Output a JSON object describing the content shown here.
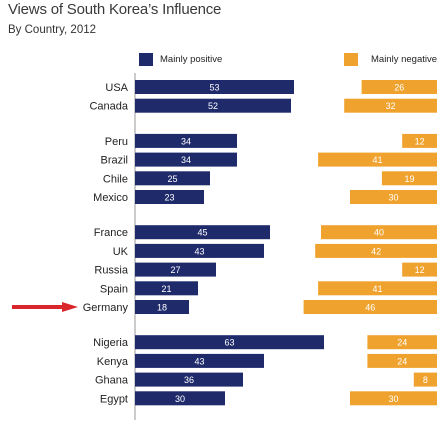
{
  "title": "Views of South Korea’s Influence",
  "subtitle": "By Country, 2012",
  "colors": {
    "positive": "#1f2a6b",
    "negative": "#f0a22e",
    "arrow": "#d9262c",
    "axis": "#9a9a9a"
  },
  "highlight": {
    "category": "Germany",
    "marker": "arrow-icon"
  },
  "chart_data": {
    "type": "bar",
    "title": "Views of South Korea’s Influence",
    "subtitle": "By Country, 2012",
    "categories": [
      "USA",
      "Canada",
      "Peru",
      "Brazil",
      "Chile",
      "Mexico",
      "France",
      "UK",
      "Russia",
      "Spain",
      "Germany",
      "Nigeria",
      "Kenya",
      "Ghana",
      "Egypt"
    ],
    "groups": [
      [
        "USA",
        "Canada"
      ],
      [
        "Peru",
        "Brazil",
        "Chile",
        "Mexico"
      ],
      [
        "France",
        "UK",
        "Russia",
        "Spain",
        "Germany"
      ],
      [
        "Nigeria",
        "Kenya",
        "Ghana",
        "Egypt"
      ]
    ],
    "series": [
      {
        "name": "Mainly positive",
        "values": [
          53,
          52,
          34,
          34,
          25,
          23,
          45,
          43,
          27,
          21,
          18,
          63,
          43,
          36,
          30
        ]
      },
      {
        "name": "Mainly negative",
        "values": [
          26,
          32,
          12,
          41,
          19,
          30,
          40,
          42,
          12,
          41,
          46,
          24,
          24,
          8,
          30
        ]
      }
    ],
    "legend": "top",
    "grid": false,
    "xlabel": "",
    "ylabel": ""
  }
}
